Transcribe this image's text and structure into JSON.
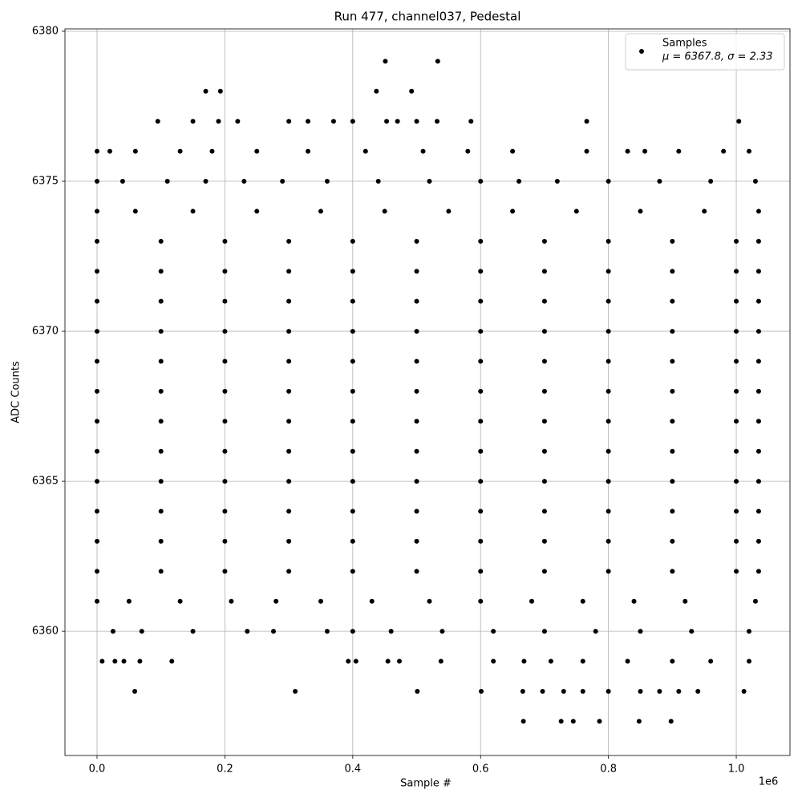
{
  "chart_data": {
    "type": "scatter",
    "title": "Run 477, channel037, Pedestal",
    "x_label": "Sample #",
    "y_label": "ADC Counts",
    "x_offset_label": "1e6",
    "xlim": [
      -50200,
      1084000
    ],
    "ylim": [
      6355.86,
      6380.08
    ],
    "xticks": [
      {
        "value": 0,
        "label": "0.0"
      },
      {
        "value": 200000,
        "label": "0.2"
      },
      {
        "value": 400000,
        "label": "0.4"
      },
      {
        "value": 600000,
        "label": "0.6"
      },
      {
        "value": 800000,
        "label": "0.8"
      },
      {
        "value": 1000000,
        "label": "1.0"
      }
    ],
    "yticks": [
      6360,
      6365,
      6370,
      6375,
      6380
    ],
    "grid": true,
    "legend": "upper right",
    "legend_note": "μ = 6367.8, σ = 2.33",
    "series": [
      {
        "name": "Samples",
        "color": "#000000",
        "x": [
          667000,
          726000,
          745000,
          786000,
          848000,
          898000,
          59000,
          310000,
          501000,
          601000,
          666000,
          697000,
          730000,
          760000,
          800000,
          850000,
          880000,
          910000,
          940000,
          1012000,
          8000,
          28000,
          42000,
          67000,
          117000,
          393000,
          405000,
          455000,
          473000,
          538000,
          620000,
          668000,
          710000,
          760000,
          830000,
          900000,
          960000,
          1020000,
          25000,
          70000,
          150000,
          235000,
          276000,
          360000,
          400000,
          460000,
          540000,
          620000,
          700000,
          780000,
          850000,
          930000,
          1020000,
          0,
          50000,
          130000,
          210000,
          280000,
          350000,
          430000,
          520000,
          600000,
          680000,
          760000,
          840000,
          920000,
          1030000,
          0,
          100000,
          200000,
          300000,
          400000,
          500000,
          600000,
          700000,
          800000,
          900000,
          1000000,
          1035000,
          0,
          100000,
          200000,
          300000,
          400000,
          500000,
          600000,
          700000,
          800000,
          900000,
          1000000,
          1035000,
          0,
          100000,
          200000,
          300000,
          400000,
          500000,
          600000,
          700000,
          800000,
          900000,
          1000000,
          1035000,
          0,
          100000,
          200000,
          300000,
          400000,
          500000,
          600000,
          700000,
          800000,
          900000,
          1000000,
          1035000,
          0,
          100000,
          200000,
          300000,
          400000,
          500000,
          600000,
          700000,
          800000,
          900000,
          1000000,
          1035000,
          0,
          100000,
          200000,
          300000,
          400000,
          500000,
          600000,
          700000,
          800000,
          900000,
          1000000,
          1035000,
          0,
          100000,
          200000,
          300000,
          400000,
          500000,
          600000,
          700000,
          800000,
          900000,
          1000000,
          1035000,
          0,
          100000,
          200000,
          300000,
          400000,
          500000,
          600000,
          700000,
          800000,
          900000,
          1000000,
          1035000,
          0,
          100000,
          200000,
          300000,
          400000,
          500000,
          600000,
          700000,
          800000,
          900000,
          1000000,
          1035000,
          0,
          100000,
          200000,
          300000,
          400000,
          500000,
          600000,
          700000,
          800000,
          900000,
          1000000,
          1035000,
          0,
          100000,
          200000,
          300000,
          400000,
          500000,
          600000,
          700000,
          800000,
          900000,
          1000000,
          1035000,
          0,
          100000,
          200000,
          300000,
          400000,
          500000,
          600000,
          700000,
          800000,
          900000,
          1000000,
          1035000,
          0,
          60000,
          150000,
          250000,
          350000,
          450000,
          550000,
          650000,
          750000,
          850000,
          950000,
          1035000,
          0,
          40000,
          110000,
          170000,
          230000,
          290000,
          360000,
          440000,
          520000,
          600000,
          660000,
          720000,
          800000,
          880000,
          960000,
          1030000,
          0,
          20000,
          60000,
          130000,
          180000,
          250000,
          330000,
          420000,
          510000,
          580000,
          650000,
          766000,
          830000,
          857000,
          910000,
          980000,
          1020000,
          95000,
          150000,
          190000,
          220000,
          300000,
          330000,
          370000,
          400000,
          453000,
          470000,
          500000,
          532000,
          585000,
          766000,
          1004000,
          170000,
          193000,
          437000,
          492000,
          451000,
          533000
        ],
        "y": [
          6357,
          6357,
          6357,
          6357,
          6357,
          6357,
          6358,
          6358,
          6358,
          6358,
          6358,
          6358,
          6358,
          6358,
          6358,
          6358,
          6358,
          6358,
          6358,
          6358,
          6359,
          6359,
          6359,
          6359,
          6359,
          6359,
          6359,
          6359,
          6359,
          6359,
          6359,
          6359,
          6359,
          6359,
          6359,
          6359,
          6359,
          6359,
          6360,
          6360,
          6360,
          6360,
          6360,
          6360,
          6360,
          6360,
          6360,
          6360,
          6360,
          6360,
          6360,
          6360,
          6360,
          6361,
          6361,
          6361,
          6361,
          6361,
          6361,
          6361,
          6361,
          6361,
          6361,
          6361,
          6361,
          6361,
          6361,
          6362,
          6362,
          6362,
          6362,
          6362,
          6362,
          6362,
          6362,
          6362,
          6362,
          6362,
          6362,
          6363,
          6363,
          6363,
          6363,
          6363,
          6363,
          6363,
          6363,
          6363,
          6363,
          6363,
          6363,
          6364,
          6364,
          6364,
          6364,
          6364,
          6364,
          6364,
          6364,
          6364,
          6364,
          6364,
          6364,
          6365,
          6365,
          6365,
          6365,
          6365,
          6365,
          6365,
          6365,
          6365,
          6365,
          6365,
          6365,
          6366,
          6366,
          6366,
          6366,
          6366,
          6366,
          6366,
          6366,
          6366,
          6366,
          6366,
          6366,
          6367,
          6367,
          6367,
          6367,
          6367,
          6367,
          6367,
          6367,
          6367,
          6367,
          6367,
          6367,
          6368,
          6368,
          6368,
          6368,
          6368,
          6368,
          6368,
          6368,
          6368,
          6368,
          6368,
          6368,
          6369,
          6369,
          6369,
          6369,
          6369,
          6369,
          6369,
          6369,
          6369,
          6369,
          6369,
          6369,
          6370,
          6370,
          6370,
          6370,
          6370,
          6370,
          6370,
          6370,
          6370,
          6370,
          6370,
          6370,
          6371,
          6371,
          6371,
          6371,
          6371,
          6371,
          6371,
          6371,
          6371,
          6371,
          6371,
          6371,
          6372,
          6372,
          6372,
          6372,
          6372,
          6372,
          6372,
          6372,
          6372,
          6372,
          6372,
          6372,
          6373,
          6373,
          6373,
          6373,
          6373,
          6373,
          6373,
          6373,
          6373,
          6373,
          6373,
          6373,
          6374,
          6374,
          6374,
          6374,
          6374,
          6374,
          6374,
          6374,
          6374,
          6374,
          6374,
          6374,
          6375,
          6375,
          6375,
          6375,
          6375,
          6375,
          6375,
          6375,
          6375,
          6375,
          6375,
          6375,
          6375,
          6375,
          6375,
          6375,
          6376,
          6376,
          6376,
          6376,
          6376,
          6376,
          6376,
          6376,
          6376,
          6376,
          6376,
          6376,
          6376,
          6376,
          6376,
          6376,
          6376,
          6377,
          6377,
          6377,
          6377,
          6377,
          6377,
          6377,
          6377,
          6377,
          6377,
          6377,
          6377,
          6377,
          6377,
          6377,
          6378,
          6378,
          6378,
          6378,
          6379,
          6379
        ]
      }
    ]
  }
}
